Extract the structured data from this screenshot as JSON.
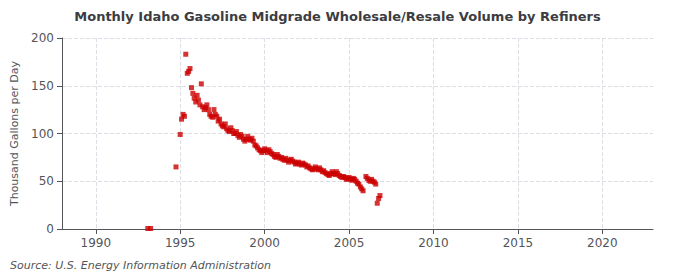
{
  "chart_data": {
    "type": "scatter",
    "title": "Monthly Idaho Gasoline Midgrade Wholesale/Resale Volume by Refiners",
    "ylabel": "Thousand Gallons per Day",
    "annotations": [
      "Source: U.S. Energy Information Administration"
    ],
    "color": "#cc0000",
    "marker": "square",
    "grid": true,
    "xlim": [
      1988,
      2023
    ],
    "ylim": [
      0,
      200
    ],
    "xticks": [
      1990,
      1995,
      2000,
      2005,
      2010,
      2015,
      2020
    ],
    "yticks": [
      0,
      50,
      100,
      150,
      200
    ],
    "x": [
      1993.08,
      1993.25,
      1994.75,
      1995.0,
      1995.08,
      1995.17,
      1995.25,
      1995.33,
      1995.42,
      1995.5,
      1995.58,
      1995.67,
      1995.75,
      1995.83,
      1995.92,
      1996.0,
      1996.08,
      1996.17,
      1996.25,
      1996.33,
      1996.42,
      1996.5,
      1996.58,
      1996.67,
      1996.75,
      1996.83,
      1996.92,
      1997.0,
      1997.08,
      1997.17,
      1997.25,
      1997.33,
      1997.42,
      1997.5,
      1997.58,
      1997.67,
      1997.75,
      1997.83,
      1997.92,
      1998.0,
      1998.08,
      1998.17,
      1998.25,
      1998.33,
      1998.42,
      1998.5,
      1998.58,
      1998.67,
      1998.75,
      1998.83,
      1998.92,
      1999.0,
      1999.08,
      1999.17,
      1999.25,
      1999.33,
      1999.42,
      1999.5,
      1999.58,
      1999.67,
      1999.75,
      1999.83,
      1999.92,
      2000.0,
      2000.08,
      2000.17,
      2000.25,
      2000.33,
      2000.42,
      2000.5,
      2000.58,
      2000.67,
      2000.75,
      2000.83,
      2000.92,
      2001.0,
      2001.08,
      2001.17,
      2001.25,
      2001.33,
      2001.42,
      2001.5,
      2001.58,
      2001.67,
      2001.75,
      2001.83,
      2001.92,
      2002.0,
      2002.08,
      2002.17,
      2002.25,
      2002.33,
      2002.42,
      2002.5,
      2002.58,
      2002.67,
      2002.75,
      2002.83,
      2002.92,
      2003.0,
      2003.08,
      2003.17,
      2003.25,
      2003.33,
      2003.42,
      2003.5,
      2003.58,
      2003.67,
      2003.75,
      2003.83,
      2003.92,
      2004.0,
      2004.08,
      2004.17,
      2004.25,
      2004.33,
      2004.42,
      2004.5,
      2004.58,
      2004.67,
      2004.75,
      2004.83,
      2004.92,
      2005.0,
      2005.08,
      2005.17,
      2005.25,
      2005.33,
      2005.42,
      2005.5,
      2005.58,
      2005.67,
      2005.75,
      2005.83,
      2006.0,
      2006.08,
      2006.17,
      2006.25,
      2006.33,
      2006.42,
      2006.5,
      2006.58,
      2006.67,
      2006.75,
      2006.83
    ],
    "values": [
      0.5,
      0.5,
      65,
      99,
      115,
      120,
      118,
      183,
      163,
      165,
      168,
      148,
      142,
      137,
      133,
      140,
      135,
      130,
      152,
      128,
      125,
      127,
      130,
      125,
      120,
      118,
      117,
      125,
      120,
      118,
      113,
      115,
      110,
      108,
      107,
      110,
      105,
      103,
      102,
      106,
      103,
      100,
      100,
      102,
      98,
      96,
      99,
      97,
      94,
      92,
      94,
      97,
      94,
      93,
      95,
      92,
      88,
      87,
      85,
      83,
      82,
      80,
      82,
      84,
      82,
      80,
      83,
      81,
      79,
      78,
      76,
      75,
      78,
      76,
      74,
      75,
      73,
      72,
      74,
      72,
      70,
      72,
      73,
      71,
      70,
      68,
      69,
      70,
      68,
      67,
      69,
      68,
      67,
      65,
      66,
      64,
      63,
      62,
      63,
      65,
      63,
      62,
      64,
      62,
      60,
      61,
      59,
      58,
      57,
      56,
      58,
      60,
      58,
      57,
      60,
      58,
      56,
      55,
      54,
      55,
      54,
      52,
      53,
      54,
      52,
      51,
      53,
      52,
      50,
      48,
      47,
      44,
      42,
      40,
      55,
      53,
      51,
      50,
      52,
      50,
      49,
      47,
      27,
      32,
      35
    ]
  }
}
